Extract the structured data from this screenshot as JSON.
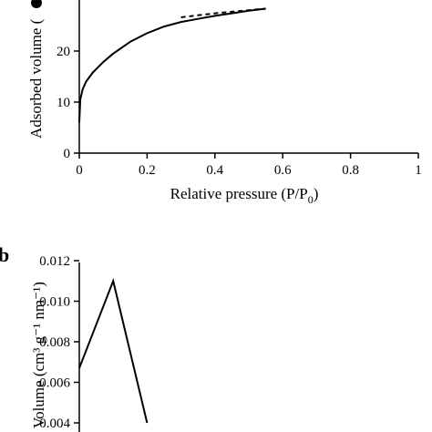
{
  "chart_data": [
    {
      "panel_label": "",
      "type": "line",
      "title": "",
      "xlabel_main": "Relative pressure (P/P",
      "xlabel_sub": "0",
      "xlabel_tail": ")",
      "ylabel": "Adsorbed volume (",
      "xlim": [
        0,
        1
      ],
      "ylim": [
        0,
        30
      ],
      "xticks": [
        "0",
        "0.2",
        "0.4",
        "0.6",
        "0.8",
        "1"
      ],
      "yticks": [
        "0",
        "10",
        "20"
      ],
      "grid": false,
      "series": [
        {
          "style": "solid",
          "x": [
            0.0,
            0.003,
            0.01,
            0.02,
            0.04,
            0.07,
            0.1,
            0.15,
            0.2,
            0.25,
            0.3,
            0.35,
            0.4,
            0.45,
            0.5,
            0.55
          ],
          "y": [
            6.0,
            10.5,
            12.5,
            14.0,
            15.8,
            17.8,
            19.5,
            21.8,
            23.5,
            24.8,
            25.7,
            26.3,
            26.9,
            27.4,
            27.9,
            28.3
          ]
        },
        {
          "style": "dashed",
          "x": [
            0.3,
            0.35,
            0.4,
            0.45,
            0.5,
            0.55
          ],
          "y": [
            26.6,
            27.0,
            27.4,
            27.7,
            28.0,
            28.3
          ]
        }
      ]
    },
    {
      "panel_label": "b",
      "type": "line",
      "title": "",
      "ylabel": "Volume (cm³ g⁻¹ nm⁻¹)",
      "xlim": [
        0,
        1
      ],
      "ylim": [
        0.004,
        0.012
      ],
      "yticks": [
        "0.004",
        "0.006",
        "0.008",
        "0.010",
        "0.012"
      ],
      "grid": false,
      "series": [
        {
          "style": "solid",
          "x": [
            0.0,
            0.1,
            0.2
          ],
          "y": [
            0.0067,
            0.011,
            0.004
          ]
        }
      ]
    }
  ]
}
